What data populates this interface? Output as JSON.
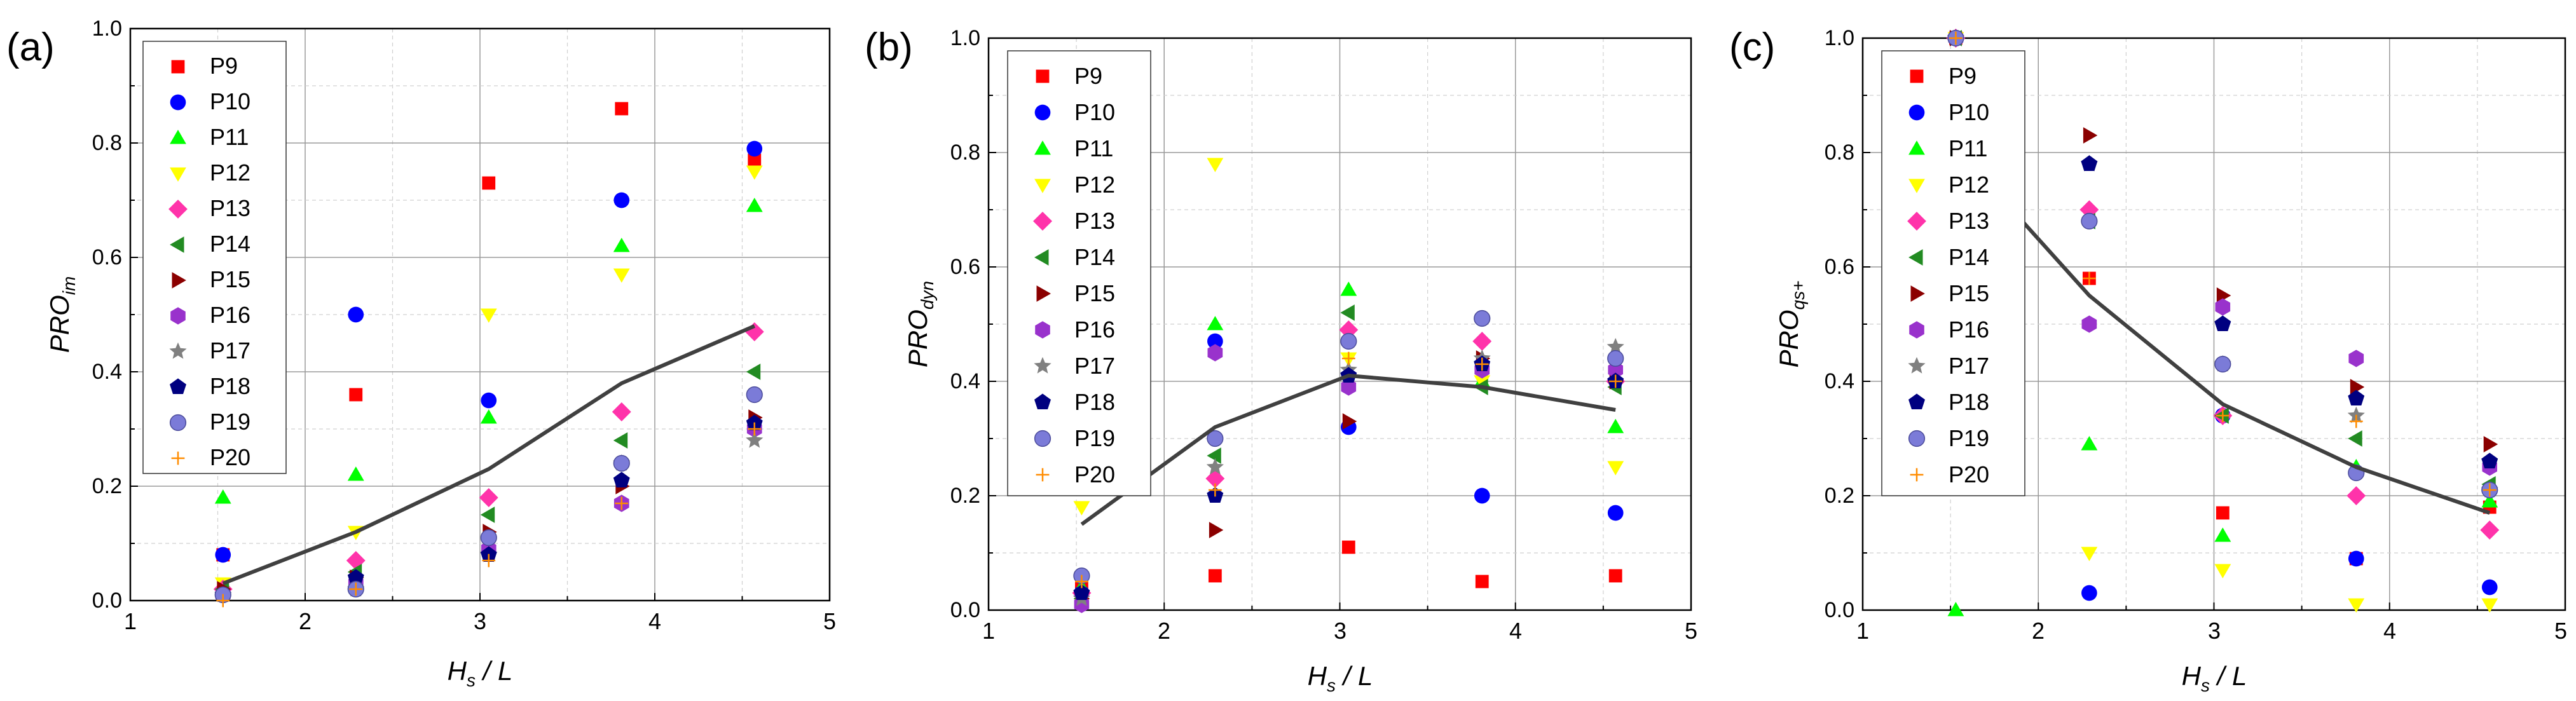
{
  "figure": {
    "series_names": [
      "P9",
      "P10",
      "P11",
      "P12",
      "P13",
      "P14",
      "P15",
      "P16",
      "P17",
      "P18",
      "P19",
      "P20"
    ],
    "series_styles": [
      {
        "name": "P9",
        "marker": "square",
        "color": "#ff0000"
      },
      {
        "name": "P10",
        "marker": "circle",
        "color": "#0000ff"
      },
      {
        "name": "P11",
        "marker": "triangle-up",
        "color": "#00ff00"
      },
      {
        "name": "P12",
        "marker": "triangle-down",
        "color": "#ffff00"
      },
      {
        "name": "P13",
        "marker": "diamond",
        "color": "#ff33aa"
      },
      {
        "name": "P14",
        "marker": "triangle-left",
        "color": "#228b22"
      },
      {
        "name": "P15",
        "marker": "triangle-right",
        "color": "#8b0000"
      },
      {
        "name": "P16",
        "marker": "hexagon",
        "color": "#9932cc"
      },
      {
        "name": "P17",
        "marker": "star",
        "color": "#808080"
      },
      {
        "name": "P18",
        "marker": "pentagon",
        "color": "#000080"
      },
      {
        "name": "P19",
        "marker": "sphere",
        "color": "#7b7bd8"
      },
      {
        "name": "P20",
        "marker": "plus",
        "color": "#ff8c00"
      }
    ],
    "mean_line_color": "#404040"
  },
  "chart_data": [
    {
      "type": "scatter",
      "panel_label": "(a)",
      "xlabel_main": "H",
      "xlabel_sub": "s",
      "xlabel_rest": " / L",
      "ylabel_main": "PRO",
      "ylabel_sub": "im",
      "xlim": [
        1,
        5
      ],
      "ylim": [
        0,
        1
      ],
      "xticks": [
        "1",
        "2",
        "3",
        "4",
        "5"
      ],
      "yticks": [
        "0.0",
        "0.2",
        "0.4",
        "0.6",
        "0.8",
        "1.0"
      ],
      "legend_position": "top-left",
      "x": [
        1.53,
        2.29,
        3.05,
        3.81,
        4.57
      ],
      "series": [
        {
          "name": "P9",
          "values": [
            0.08,
            0.36,
            0.73,
            0.86,
            0.77
          ]
        },
        {
          "name": "P10",
          "values": [
            0.08,
            0.5,
            0.35,
            0.7,
            0.79
          ]
        },
        {
          "name": "P11",
          "values": [
            0.18,
            0.22,
            0.32,
            0.62,
            0.69
          ]
        },
        {
          "name": "P12",
          "values": [
            0.03,
            0.12,
            0.5,
            0.57,
            0.75
          ]
        },
        {
          "name": "P13",
          "values": [
            0.02,
            0.07,
            0.18,
            0.33,
            0.47
          ]
        },
        {
          "name": "P14",
          "values": [
            0.02,
            0.05,
            0.15,
            0.28,
            0.4
          ]
        },
        {
          "name": "P15",
          "values": [
            0.02,
            0.04,
            0.12,
            0.2,
            0.32
          ]
        },
        {
          "name": "P16",
          "values": [
            0.01,
            0.03,
            0.09,
            0.17,
            0.3
          ]
        },
        {
          "name": "P17",
          "values": [
            0.01,
            0.02,
            0.08,
            0.24,
            0.28
          ]
        },
        {
          "name": "P18",
          "values": [
            0.01,
            0.04,
            0.08,
            0.21,
            0.31
          ]
        },
        {
          "name": "P19",
          "values": [
            0.01,
            0.02,
            0.11,
            0.24,
            0.36
          ]
        },
        {
          "name": "P20",
          "values": [
            0.0,
            0.02,
            0.07,
            0.17,
            0.3
          ]
        }
      ],
      "mean": [
        0.03,
        0.12,
        0.23,
        0.38,
        0.48
      ]
    },
    {
      "type": "scatter",
      "panel_label": "(b)",
      "xlabel_main": "H",
      "xlabel_sub": "s",
      "xlabel_rest": " / L",
      "ylabel_main": "PRO",
      "ylabel_sub": "dyn",
      "xlim": [
        1,
        5
      ],
      "ylim": [
        0,
        1
      ],
      "xticks": [
        "1",
        "2",
        "3",
        "4",
        "5"
      ],
      "yticks": [
        "0.0",
        "0.2",
        "0.4",
        "0.6",
        "0.8",
        "1.0"
      ],
      "legend_position": "top-left",
      "x": [
        1.53,
        2.29,
        3.05,
        3.81,
        4.57
      ],
      "series": [
        {
          "name": "P9",
          "values": [
            0.04,
            0.06,
            0.11,
            0.05,
            0.06
          ]
        },
        {
          "name": "P10",
          "values": [
            0.03,
            0.47,
            0.32,
            0.2,
            0.17
          ]
        },
        {
          "name": "P11",
          "values": [
            0.04,
            0.5,
            0.56,
            0.4,
            0.32
          ]
        },
        {
          "name": "P12",
          "values": [
            0.18,
            0.78,
            0.44,
            0.4,
            0.25
          ]
        },
        {
          "name": "P13",
          "values": [
            0.03,
            0.23,
            0.49,
            0.47,
            0.4
          ]
        },
        {
          "name": "P14",
          "values": [
            0.02,
            0.27,
            0.52,
            0.39,
            0.39
          ]
        },
        {
          "name": "P15",
          "values": [
            0.02,
            0.14,
            0.33,
            0.44,
            0.4
          ]
        },
        {
          "name": "P16",
          "values": [
            0.01,
            0.45,
            0.39,
            0.42,
            0.42
          ]
        },
        {
          "name": "P17",
          "values": [
            0.02,
            0.25,
            0.42,
            0.44,
            0.46
          ]
        },
        {
          "name": "P18",
          "values": [
            0.03,
            0.2,
            0.41,
            0.43,
            0.4
          ]
        },
        {
          "name": "P19",
          "values": [
            0.06,
            0.3,
            0.47,
            0.51,
            0.44
          ]
        },
        {
          "name": "P20",
          "values": [
            0.05,
            0.21,
            0.44,
            0.43,
            0.4
          ]
        }
      ],
      "mean": [
        0.15,
        0.32,
        0.41,
        0.39,
        0.35
      ]
    },
    {
      "type": "scatter",
      "panel_label": "(c)",
      "xlabel_main": "H",
      "xlabel_sub": "s",
      "xlabel_rest": " / L",
      "ylabel_main": "PRO",
      "ylabel_sub": "qs+",
      "xlim": [
        1,
        5
      ],
      "ylim": [
        0,
        1
      ],
      "xticks": [
        "1",
        "2",
        "3",
        "4",
        "5"
      ],
      "yticks": [
        "0.0",
        "0.2",
        "0.4",
        "0.6",
        "0.8",
        "1.0"
      ],
      "legend_position": "top-left",
      "x": [
        1.53,
        2.29,
        3.05,
        3.81,
        4.57
      ],
      "series": [
        {
          "name": "P9",
          "values": [
            1.0,
            0.58,
            0.17,
            0.09,
            0.18
          ]
        },
        {
          "name": "P10",
          "values": [
            1.0,
            0.03,
            0.34,
            0.09,
            0.04
          ]
        },
        {
          "name": "P11",
          "values": [
            0.0,
            0.29,
            0.13,
            0.25,
            0.19
          ]
        },
        {
          "name": "P12",
          "values": [
            1.0,
            0.1,
            0.07,
            0.01,
            0.01
          ]
        },
        {
          "name": "P13",
          "values": [
            1.0,
            0.7,
            0.34,
            0.2,
            0.14
          ]
        },
        {
          "name": "P14",
          "values": [
            1.0,
            0.68,
            0.34,
            0.3,
            0.22
          ]
        },
        {
          "name": "P15",
          "values": [
            1.0,
            0.83,
            0.55,
            0.39,
            0.29
          ]
        },
        {
          "name": "P16",
          "values": [
            1.0,
            0.5,
            0.53,
            0.44,
            0.25
          ]
        },
        {
          "name": "P17",
          "values": [
            1.0,
            0.78,
            0.43,
            0.34,
            0.21
          ]
        },
        {
          "name": "P18",
          "values": [
            1.0,
            0.78,
            0.5,
            0.37,
            0.26
          ]
        },
        {
          "name": "P19",
          "values": [
            1.0,
            0.68,
            0.43,
            0.24,
            0.21
          ]
        },
        {
          "name": "P20",
          "values": [
            1.0,
            0.58,
            0.34,
            0.33,
            0.21
          ]
        }
      ],
      "mean": [
        null,
        0.55,
        0.36,
        0.25,
        0.17
      ],
      "mean_start": {
        "x": 1.85,
        "y": 0.7
      }
    }
  ]
}
